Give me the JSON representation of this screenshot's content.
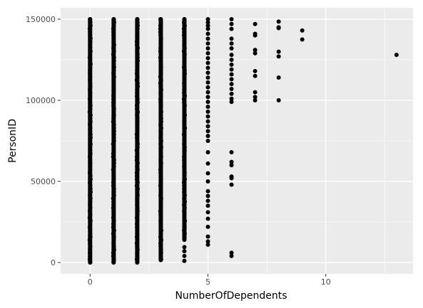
{
  "chart_data": {
    "type": "scatter",
    "title": "",
    "xlabel": "NumberOfDependents",
    "ylabel": "PersonID",
    "xlim": [
      -1.25,
      13.7
    ],
    "ylim": [
      -7000,
      157000
    ],
    "x_ticks": [
      0,
      5,
      10
    ],
    "x_tick_labels": [
      "0",
      "5",
      "10"
    ],
    "y_ticks": [
      0,
      50000,
      100000,
      150000
    ],
    "y_tick_labels": [
      "0",
      "50000",
      "100000",
      "150000"
    ],
    "grid": true,
    "legend": "none",
    "colors": {
      "panel": "#ebebeb",
      "grid": "#ffffff",
      "point": "#000000",
      "tick_text": "#4d4d4d"
    },
    "dense_ranges": [
      {
        "x": 0,
        "y_min": 0,
        "y_max": 150000
      },
      {
        "x": 1,
        "y_min": 0,
        "y_max": 150000
      },
      {
        "x": 2,
        "y_min": 0,
        "y_max": 150000
      },
      {
        "x": 3,
        "y_min": 1500,
        "y_max": 150000
      },
      {
        "x": 4,
        "y_min": 14000,
        "y_max": 150000
      }
    ],
    "points": [
      {
        "x": 4,
        "y": 1000
      },
      {
        "x": 4,
        "y": 4000
      },
      {
        "x": 4,
        "y": 7000
      },
      {
        "x": 4,
        "y": 9500
      },
      {
        "x": 5,
        "y": 150000
      },
      {
        "x": 5,
        "y": 148000
      },
      {
        "x": 5,
        "y": 146000
      },
      {
        "x": 5,
        "y": 144000
      },
      {
        "x": 5,
        "y": 141000
      },
      {
        "x": 5,
        "y": 138000
      },
      {
        "x": 5,
        "y": 135000
      },
      {
        "x": 5,
        "y": 132000
      },
      {
        "x": 5,
        "y": 129000
      },
      {
        "x": 5,
        "y": 126000
      },
      {
        "x": 5,
        "y": 123000
      },
      {
        "x": 5,
        "y": 120000
      },
      {
        "x": 5,
        "y": 117000
      },
      {
        "x": 5,
        "y": 114000
      },
      {
        "x": 5,
        "y": 111000
      },
      {
        "x": 5,
        "y": 108000
      },
      {
        "x": 5,
        "y": 105000
      },
      {
        "x": 5,
        "y": 102000
      },
      {
        "x": 5,
        "y": 99000
      },
      {
        "x": 5,
        "y": 96000
      },
      {
        "x": 5,
        "y": 93000
      },
      {
        "x": 5,
        "y": 90000
      },
      {
        "x": 5,
        "y": 87000
      },
      {
        "x": 5,
        "y": 84000
      },
      {
        "x": 5,
        "y": 81000
      },
      {
        "x": 5,
        "y": 78000
      },
      {
        "x": 5,
        "y": 75000
      },
      {
        "x": 5,
        "y": 68000
      },
      {
        "x": 5,
        "y": 61000
      },
      {
        "x": 5,
        "y": 55000
      },
      {
        "x": 5,
        "y": 50000
      },
      {
        "x": 5,
        "y": 44000
      },
      {
        "x": 5,
        "y": 41000
      },
      {
        "x": 5,
        "y": 38000
      },
      {
        "x": 5,
        "y": 35000
      },
      {
        "x": 5,
        "y": 31000
      },
      {
        "x": 5,
        "y": 27000
      },
      {
        "x": 5,
        "y": 22000
      },
      {
        "x": 5,
        "y": 16000
      },
      {
        "x": 5,
        "y": 13000
      },
      {
        "x": 5,
        "y": 11000
      },
      {
        "x": 6,
        "y": 150000
      },
      {
        "x": 6,
        "y": 147000
      },
      {
        "x": 6,
        "y": 144000
      },
      {
        "x": 6,
        "y": 138000
      },
      {
        "x": 6,
        "y": 135000
      },
      {
        "x": 6,
        "y": 132000
      },
      {
        "x": 6,
        "y": 128000
      },
      {
        "x": 6,
        "y": 125000
      },
      {
        "x": 6,
        "y": 122000
      },
      {
        "x": 6,
        "y": 119000
      },
      {
        "x": 6,
        "y": 116000
      },
      {
        "x": 6,
        "y": 113000
      },
      {
        "x": 6,
        "y": 110000
      },
      {
        "x": 6,
        "y": 107000
      },
      {
        "x": 6,
        "y": 104000
      },
      {
        "x": 6,
        "y": 101000
      },
      {
        "x": 6,
        "y": 99000
      },
      {
        "x": 6,
        "y": 68000
      },
      {
        "x": 6,
        "y": 62000
      },
      {
        "x": 6,
        "y": 60000
      },
      {
        "x": 6,
        "y": 53000
      },
      {
        "x": 6,
        "y": 52000
      },
      {
        "x": 6,
        "y": 48000
      },
      {
        "x": 6,
        "y": 6000
      },
      {
        "x": 6,
        "y": 4000
      },
      {
        "x": 7,
        "y": 147000
      },
      {
        "x": 7,
        "y": 141000
      },
      {
        "x": 7,
        "y": 140000
      },
      {
        "x": 7,
        "y": 131000
      },
      {
        "x": 7,
        "y": 129000
      },
      {
        "x": 7,
        "y": 118000
      },
      {
        "x": 7,
        "y": 115000
      },
      {
        "x": 7,
        "y": 105000
      },
      {
        "x": 7,
        "y": 102000
      },
      {
        "x": 7,
        "y": 100000
      },
      {
        "x": 8,
        "y": 148500
      },
      {
        "x": 8,
        "y": 145000
      },
      {
        "x": 8,
        "y": 144500
      },
      {
        "x": 8,
        "y": 130000
      },
      {
        "x": 8,
        "y": 127000
      },
      {
        "x": 8,
        "y": 114000
      },
      {
        "x": 8,
        "y": 100000
      },
      {
        "x": 9,
        "y": 143000
      },
      {
        "x": 9,
        "y": 137500
      },
      {
        "x": 13,
        "y": 128000
      }
    ]
  }
}
